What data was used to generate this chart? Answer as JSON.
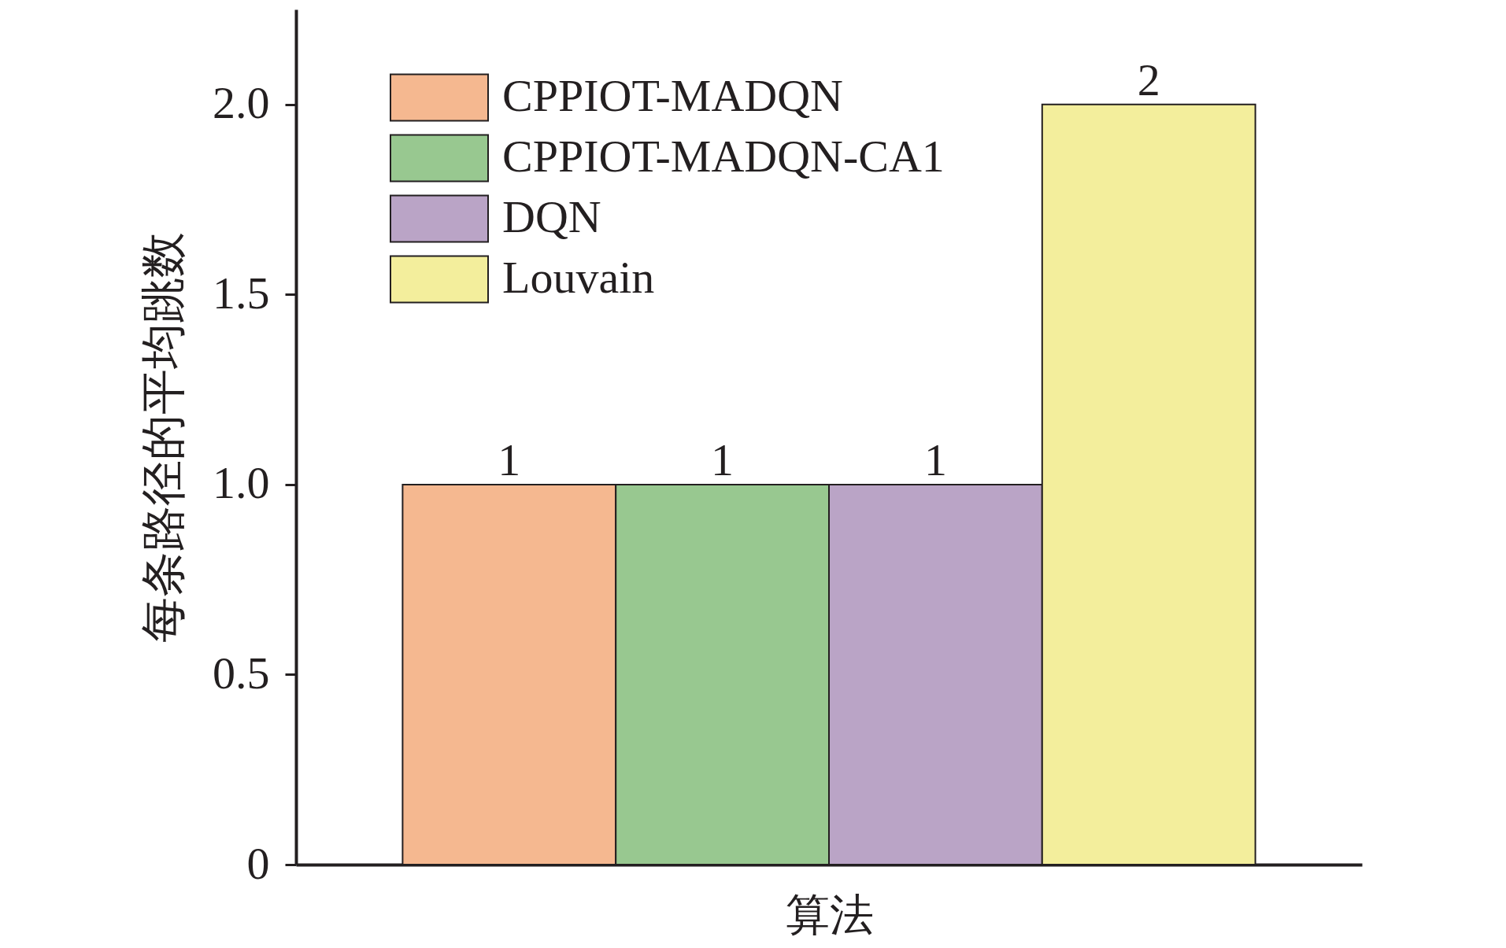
{
  "chart_data": {
    "type": "bar",
    "xlabel": "算法",
    "ylabel": "每条路径的平均跳数",
    "categories": [
      null
    ],
    "series": [
      {
        "name": "CPPIOT-MADQN",
        "color": "#f5b890",
        "values": [
          1
        ]
      },
      {
        "name": "CPPIOT-MADQN-CA1",
        "color": "#98c890",
        "values": [
          1
        ]
      },
      {
        "name": "DQN",
        "color": "#baa4c6",
        "values": [
          1
        ]
      },
      {
        "name": "Louvain",
        "color": "#f3ee9c",
        "values": [
          2
        ]
      }
    ],
    "ylim": [
      0,
      2.25
    ],
    "yticks": [
      0,
      0.5,
      {
        "value": 1,
        "label": "1.0"
      },
      1.5,
      {
        "value": 2,
        "label": "2.0"
      }
    ],
    "data_labels": true,
    "legend": "top left",
    "grid": false
  }
}
